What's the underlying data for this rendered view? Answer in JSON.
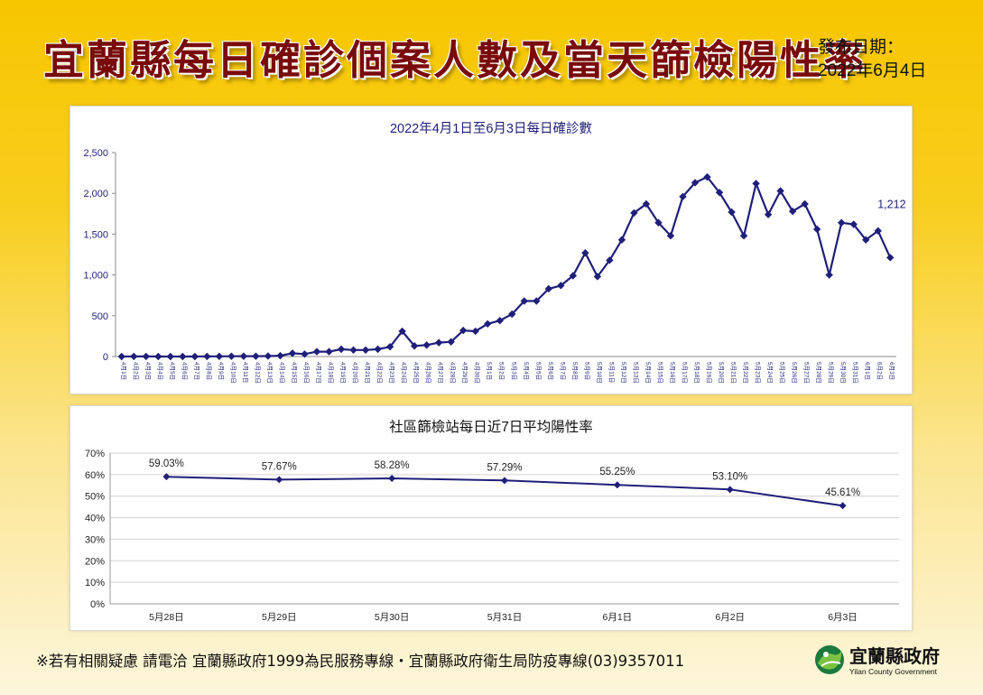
{
  "header": {
    "title": "宜蘭縣每日確診個案人數及當天篩檢陽性率",
    "release_label": "發布日期：",
    "release_date": "2022年6月4日"
  },
  "chart_data": [
    {
      "type": "line",
      "title": "2022年4月1日至6月3日每日確診數",
      "xlabel": "",
      "ylabel": "",
      "ylim": [
        0,
        2500
      ],
      "yticks": [
        "0",
        "500",
        "1,000",
        "1,500",
        "2,000",
        "2,500"
      ],
      "grid": false,
      "color": "#1f1f7a",
      "categories": [
        "4月1日",
        "4月2日",
        "4月3日",
        "4月4日",
        "4月5日",
        "4月6日",
        "4月7日",
        "4月8日",
        "4月9日",
        "4月10日",
        "4月11日",
        "4月12日",
        "4月13日",
        "4月14日",
        "4月15日",
        "4月16日",
        "4月17日",
        "4月18日",
        "4月19日",
        "4月20日",
        "4月21日",
        "4月22日",
        "4月23日",
        "4月24日",
        "4月25日",
        "4月26日",
        "4月27日",
        "4月28日",
        "4月29日",
        "4月30日",
        "5月1日",
        "5月2日",
        "5月3日",
        "5月4日",
        "5月5日",
        "5月6日",
        "5月7日",
        "5月8日",
        "5月9日",
        "5月10日",
        "5月11日",
        "5月12日",
        "5月13日",
        "5月14日",
        "5月15日",
        "5月16日",
        "5月17日",
        "5月18日",
        "5月19日",
        "5月20日",
        "5月21日",
        "5月22日",
        "5月23日",
        "5月24日",
        "5月25日",
        "5月26日",
        "5月27日",
        "5月28日",
        "5月29日",
        "5月30日",
        "5月31日",
        "6月1日",
        "6月2日",
        "6月3日"
      ],
      "values": [
        0,
        1,
        1,
        0,
        0,
        0,
        0,
        1,
        2,
        3,
        4,
        4,
        6,
        10,
        40,
        30,
        60,
        60,
        90,
        80,
        80,
        90,
        120,
        310,
        130,
        140,
        170,
        180,
        320,
        310,
        400,
        440,
        520,
        680,
        680,
        830,
        870,
        990,
        1270,
        980,
        1180,
        1430,
        1760,
        1870,
        1640,
        1480,
        1960,
        2130,
        2200,
        2010,
        1770,
        1480,
        2120,
        1740,
        2030,
        1780,
        1870,
        1560,
        1000,
        1640,
        1620,
        1430,
        1540,
        1212
      ],
      "annotations": [
        {
          "index": 63,
          "text": "1,212"
        }
      ]
    },
    {
      "type": "line",
      "title": "社區篩檢站每日近7日平均陽性率",
      "xlabel": "",
      "ylabel": "",
      "ylim": [
        0,
        70
      ],
      "yticks": [
        "0%",
        "10%",
        "20%",
        "30%",
        "40%",
        "50%",
        "60%",
        "70%"
      ],
      "grid": true,
      "color": "#1f1f7a",
      "categories": [
        "5月28日",
        "5月29日",
        "5月30日",
        "5月31日",
        "6月1日",
        "6月2日",
        "6月3日"
      ],
      "values": [
        59.03,
        57.67,
        58.28,
        57.29,
        55.25,
        53.1,
        45.61
      ],
      "data_labels": [
        "59.03%",
        "57.67%",
        "58.28%",
        "57.29%",
        "55.25%",
        "53.10%",
        "45.61%"
      ]
    }
  ],
  "footer": {
    "note": "※若有相關疑慮 請電洽  宜蘭縣政府1999為民服務專線・宜蘭縣政府衛生局防疫專線(03)9357011",
    "logo_name": "宜蘭縣政府",
    "logo_subtitle": "Yilan County Government",
    "logo_icon": "yilan-county-emblem-icon"
  }
}
